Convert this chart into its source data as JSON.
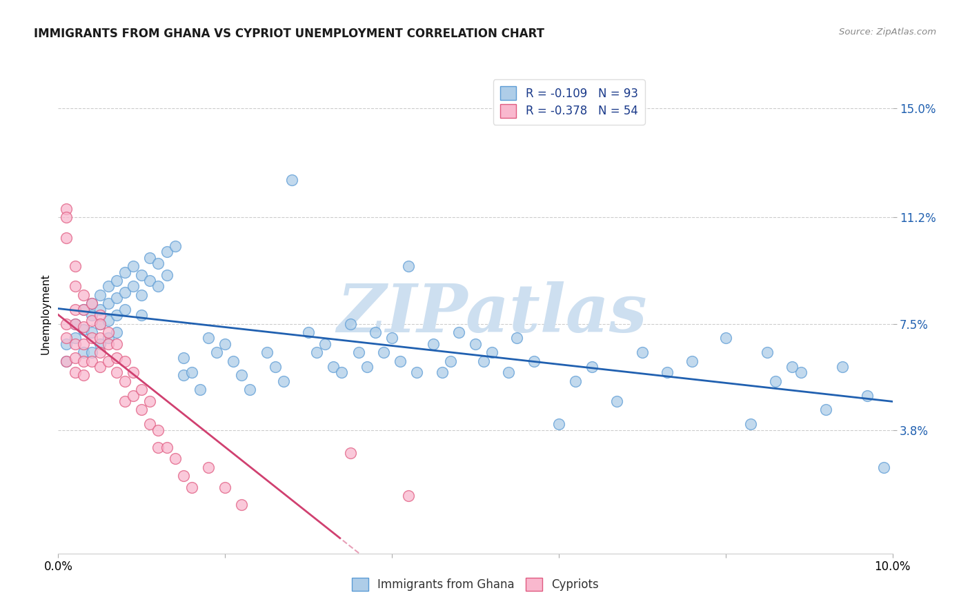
{
  "title": "IMMIGRANTS FROM GHANA VS CYPRIOT UNEMPLOYMENT CORRELATION CHART",
  "source": "Source: ZipAtlas.com",
  "ylabel": "Unemployment",
  "x_min": 0.0,
  "x_max": 0.1,
  "y_min": -0.01,
  "y_max": 0.162,
  "y_ticks": [
    0.038,
    0.075,
    0.112,
    0.15
  ],
  "y_tick_labels": [
    "3.8%",
    "7.5%",
    "11.2%",
    "15.0%"
  ],
  "x_ticks": [
    0.0,
    0.02,
    0.04,
    0.06,
    0.08,
    0.1
  ],
  "blue_R": -0.109,
  "blue_N": 93,
  "pink_R": -0.378,
  "pink_N": 54,
  "blue_color": "#aecde8",
  "pink_color": "#f9b8ce",
  "blue_edge": "#5b9bd5",
  "pink_edge": "#e05a80",
  "blue_line_color": "#2060b0",
  "pink_line_color": "#d04070",
  "watermark": "ZIPatlas",
  "watermark_color": "#cddff0",
  "legend_label_blue": "Immigrants from Ghana",
  "legend_label_pink": "Cypriots",
  "blue_scatter_x": [
    0.001,
    0.001,
    0.002,
    0.002,
    0.003,
    0.003,
    0.003,
    0.004,
    0.004,
    0.004,
    0.004,
    0.005,
    0.005,
    0.005,
    0.005,
    0.006,
    0.006,
    0.006,
    0.006,
    0.007,
    0.007,
    0.007,
    0.007,
    0.008,
    0.008,
    0.008,
    0.009,
    0.009,
    0.01,
    0.01,
    0.01,
    0.011,
    0.011,
    0.012,
    0.012,
    0.013,
    0.013,
    0.014,
    0.015,
    0.015,
    0.016,
    0.017,
    0.018,
    0.019,
    0.02,
    0.021,
    0.022,
    0.023,
    0.025,
    0.026,
    0.027,
    0.028,
    0.03,
    0.031,
    0.032,
    0.033,
    0.034,
    0.035,
    0.036,
    0.037,
    0.038,
    0.039,
    0.04,
    0.041,
    0.042,
    0.043,
    0.045,
    0.046,
    0.047,
    0.048,
    0.05,
    0.051,
    0.052,
    0.054,
    0.055,
    0.057,
    0.06,
    0.062,
    0.064,
    0.067,
    0.07,
    0.073,
    0.076,
    0.08,
    0.083,
    0.086,
    0.089,
    0.092,
    0.094,
    0.097,
    0.085,
    0.088,
    0.099
  ],
  "blue_scatter_y": [
    0.068,
    0.062,
    0.075,
    0.07,
    0.08,
    0.073,
    0.065,
    0.082,
    0.078,
    0.072,
    0.065,
    0.085,
    0.08,
    0.075,
    0.068,
    0.088,
    0.082,
    0.076,
    0.07,
    0.09,
    0.084,
    0.078,
    0.072,
    0.093,
    0.086,
    0.08,
    0.095,
    0.088,
    0.092,
    0.085,
    0.078,
    0.098,
    0.09,
    0.096,
    0.088,
    0.1,
    0.092,
    0.102,
    0.063,
    0.057,
    0.058,
    0.052,
    0.07,
    0.065,
    0.068,
    0.062,
    0.057,
    0.052,
    0.065,
    0.06,
    0.055,
    0.125,
    0.072,
    0.065,
    0.068,
    0.06,
    0.058,
    0.075,
    0.065,
    0.06,
    0.072,
    0.065,
    0.07,
    0.062,
    0.095,
    0.058,
    0.068,
    0.058,
    0.062,
    0.072,
    0.068,
    0.062,
    0.065,
    0.058,
    0.07,
    0.062,
    0.04,
    0.055,
    0.06,
    0.048,
    0.065,
    0.058,
    0.062,
    0.07,
    0.04,
    0.055,
    0.058,
    0.045,
    0.06,
    0.05,
    0.065,
    0.06,
    0.025
  ],
  "pink_scatter_x": [
    0.001,
    0.001,
    0.001,
    0.001,
    0.001,
    0.001,
    0.002,
    0.002,
    0.002,
    0.002,
    0.002,
    0.002,
    0.002,
    0.003,
    0.003,
    0.003,
    0.003,
    0.003,
    0.003,
    0.004,
    0.004,
    0.004,
    0.004,
    0.005,
    0.005,
    0.005,
    0.005,
    0.005,
    0.006,
    0.006,
    0.006,
    0.007,
    0.007,
    0.007,
    0.008,
    0.008,
    0.008,
    0.009,
    0.009,
    0.01,
    0.01,
    0.011,
    0.011,
    0.012,
    0.012,
    0.013,
    0.014,
    0.015,
    0.016,
    0.018,
    0.02,
    0.022,
    0.035,
    0.042
  ],
  "pink_scatter_y": [
    0.115,
    0.112,
    0.105,
    0.075,
    0.07,
    0.062,
    0.095,
    0.088,
    0.08,
    0.075,
    0.068,
    0.063,
    0.058,
    0.085,
    0.08,
    0.074,
    0.068,
    0.062,
    0.057,
    0.082,
    0.076,
    0.07,
    0.062,
    0.078,
    0.075,
    0.07,
    0.065,
    0.06,
    0.072,
    0.068,
    0.062,
    0.068,
    0.063,
    0.058,
    0.062,
    0.055,
    0.048,
    0.058,
    0.05,
    0.052,
    0.045,
    0.048,
    0.04,
    0.038,
    0.032,
    0.032,
    0.028,
    0.022,
    0.018,
    0.025,
    0.018,
    0.012,
    0.03,
    0.015
  ]
}
